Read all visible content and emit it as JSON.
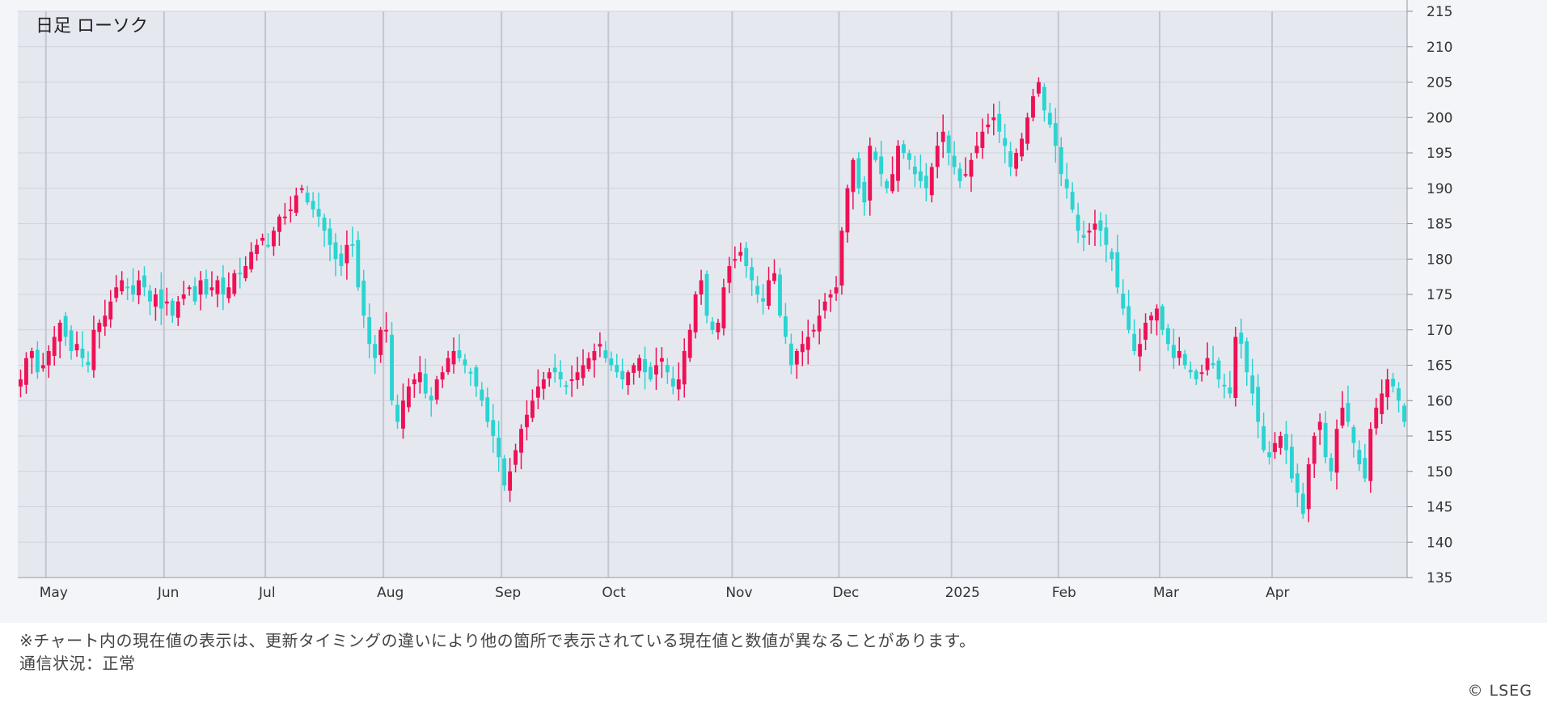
{
  "chart_title": "日足 ローソク",
  "disclaimer": "※チャート内の現在値の表示は、更新タイミングの違いにより他の箇所で表示されている現在値と数値が異なることがあります。",
  "status_line": "通信状況：正常",
  "copyright": "© LSEG",
  "colors": {
    "up": "#ee1155",
    "down": "#2ad4d1",
    "grid": "#cfd3dd",
    "plot_bg": "#e6e8f0",
    "month_line": "#c2c6d0"
  },
  "chart_data": {
    "type": "candlestick",
    "title": "日足 ローソク",
    "x_labels": [
      "May",
      "Jun",
      "Jul",
      "Aug",
      "Sep",
      "Oct",
      "Nov",
      "Dec",
      "2025",
      "Feb",
      "Mar",
      "Apr"
    ],
    "y_ticks": [
      135,
      140,
      145,
      150,
      155,
      160,
      165,
      170,
      175,
      180,
      185,
      190,
      195,
      200,
      205,
      210,
      215
    ],
    "ylim": [
      135,
      215
    ],
    "y_axis_side": "right",
    "grid": true,
    "month_boundaries": [
      {
        "label": "May",
        "index": 5
      },
      {
        "label": "Jun",
        "index": 26
      },
      {
        "label": "Jul",
        "index": 44
      },
      {
        "label": "Aug",
        "index": 65
      },
      {
        "label": "Sep",
        "index": 86
      },
      {
        "label": "Oct",
        "index": 105
      },
      {
        "label": "Nov",
        "index": 127
      },
      {
        "label": "Dec",
        "index": 146
      },
      {
        "label": "2025",
        "index": 166
      },
      {
        "label": "Feb",
        "index": 185
      },
      {
        "label": "Mar",
        "index": 203
      },
      {
        "label": "Apr",
        "index": 223
      }
    ],
    "closes": [
      163,
      166,
      167,
      164,
      165,
      167,
      169,
      171,
      169,
      167,
      168,
      166,
      165,
      170,
      171,
      172,
      174,
      176,
      177,
      176,
      175,
      177,
      176,
      174,
      175,
      173,
      174,
      172,
      174,
      175,
      176,
      174,
      177,
      175,
      176,
      177,
      175,
      176,
      178,
      178,
      179,
      181,
      182,
      183,
      182,
      184,
      186,
      186,
      187,
      189,
      190,
      188,
      187,
      186,
      184,
      182,
      180,
      179,
      182,
      182,
      176,
      172,
      168,
      166,
      170,
      170,
      160,
      157,
      160,
      162,
      163,
      164,
      161,
      160,
      163,
      164,
      166,
      167,
      166,
      165,
      164,
      162,
      160,
      157,
      155,
      152,
      148,
      150,
      153,
      156,
      158,
      160,
      162,
      163,
      164,
      164,
      163,
      162,
      163,
      164,
      165,
      166,
      167,
      168,
      166,
      165,
      164,
      163,
      164,
      165,
      166,
      164,
      163,
      165,
      166,
      164,
      162,
      163,
      167,
      170,
      175,
      177,
      172,
      170,
      171,
      176,
      179,
      180,
      181,
      179,
      177,
      175,
      174,
      177,
      178,
      172,
      169,
      165,
      167,
      168,
      169,
      170,
      172,
      174,
      175,
      176,
      184,
      190,
      194,
      190,
      188,
      196,
      194,
      192,
      190,
      192,
      196,
      195,
      194,
      192,
      191,
      190,
      193,
      196,
      198,
      195,
      193,
      191,
      192,
      194,
      196,
      198,
      199,
      200,
      198,
      196,
      193,
      195,
      197,
      200,
      203,
      205,
      201,
      199,
      196,
      192,
      190,
      187,
      184,
      183,
      184,
      185,
      184,
      182,
      180,
      176,
      173,
      170,
      167,
      168,
      171,
      172,
      173,
      170,
      168,
      166,
      167,
      165,
      164,
      163,
      164,
      166,
      165,
      163,
      162,
      161,
      169,
      168,
      164,
      161,
      157,
      153,
      152,
      154,
      155,
      153,
      149,
      147,
      144,
      151,
      155,
      157,
      152,
      150,
      156,
      159,
      157,
      154,
      151,
      149,
      156,
      159,
      161,
      163,
      162,
      160,
      157
    ]
  }
}
